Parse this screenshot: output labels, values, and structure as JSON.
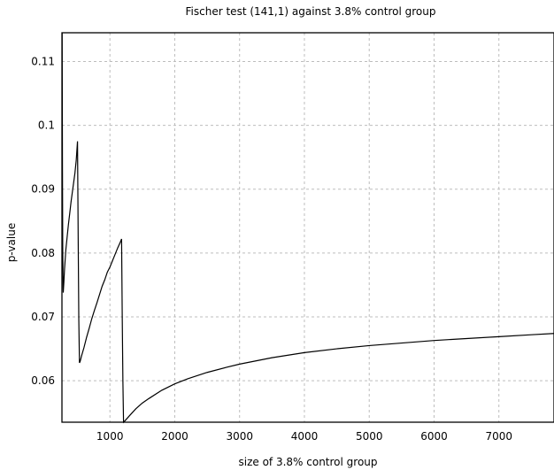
{
  "chart_data": {
    "type": "line",
    "title": "Fischer test (141,1) against 3.8% control group",
    "xlabel": "size of 3.8% control group",
    "ylabel": "p-value",
    "xlim": [
      260,
      7850
    ],
    "ylim": [
      0.0535,
      0.1145
    ],
    "grid": true,
    "legend": "none",
    "line_color": "#000000",
    "x_ticks": [
      1000,
      2000,
      3000,
      4000,
      5000,
      6000,
      7000
    ],
    "x_tick_labels": [
      "1000",
      "2000",
      "3000",
      "4000",
      "5000",
      "6000",
      "7000"
    ],
    "y_ticks": [
      0.06,
      0.07,
      0.08,
      0.09,
      0.1,
      0.11
    ],
    "y_tick_labels": [
      "0.06",
      "0.07",
      "0.08",
      "0.09",
      "0.1",
      "0.11"
    ],
    "series": [
      {
        "x": [
          263,
          265,
          268,
          272,
          278,
          280,
          290,
          300,
          320,
          340,
          360,
          380,
          400,
          420,
          440,
          460,
          480,
          500,
          510,
          520,
          530,
          540,
          560,
          600,
          640,
          680,
          720,
          760,
          800,
          840,
          880,
          920,
          960,
          1000,
          1040,
          1080,
          1120,
          1160,
          1180,
          1190,
          1200,
          1210,
          1230,
          1300,
          1400,
          1500,
          1600,
          1800,
          2000,
          2200,
          2500,
          2800,
          3000,
          3500,
          4000,
          4500,
          5000,
          5500,
          6000,
          6500,
          7000,
          7500,
          7850
        ],
        "y": [
          0.1145,
          0.106,
          0.093,
          0.081,
          0.0745,
          0.0738,
          0.0755,
          0.0775,
          0.0805,
          0.0825,
          0.0845,
          0.0862,
          0.088,
          0.0895,
          0.091,
          0.0925,
          0.0945,
          0.0975,
          0.083,
          0.0695,
          0.0628,
          0.063,
          0.0638,
          0.0652,
          0.0668,
          0.0682,
          0.0697,
          0.071,
          0.0722,
          0.0735,
          0.0748,
          0.0758,
          0.077,
          0.0778,
          0.0788,
          0.0798,
          0.0808,
          0.0817,
          0.0822,
          0.07,
          0.06,
          0.0535,
          0.0537,
          0.0545,
          0.0556,
          0.0565,
          0.0572,
          0.0585,
          0.0595,
          0.0603,
          0.0613,
          0.0621,
          0.0626,
          0.0636,
          0.0644,
          0.065,
          0.0655,
          0.0659,
          0.0663,
          0.0666,
          0.0669,
          0.0672,
          0.0674
        ]
      }
    ]
  }
}
